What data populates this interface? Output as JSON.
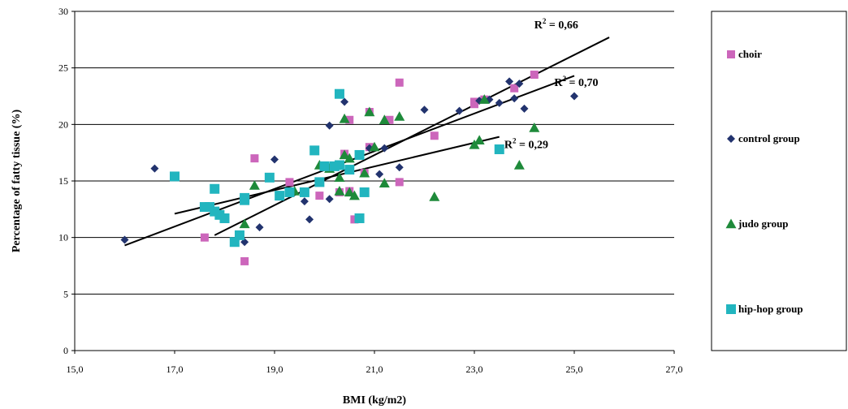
{
  "chart_data": {
    "type": "scatter",
    "xlabel": "BMI (kg/m2)",
    "ylabel": "Percentage of fatty tissue  (%)",
    "xlim": [
      15,
      27
    ],
    "ylim": [
      0,
      30
    ],
    "x_ticks": [
      "15,0",
      "17,0",
      "19,0",
      "21,0",
      "23,0",
      "25,0",
      "27,0"
    ],
    "x_tick_values": [
      15,
      17,
      19,
      21,
      23,
      25,
      27
    ],
    "y_ticks": [
      "0",
      "5",
      "10",
      "15",
      "20",
      "25",
      "30"
    ],
    "y_tick_values": [
      0,
      5,
      10,
      15,
      20,
      25,
      30
    ],
    "grid": "horizontal",
    "legend_position": "right",
    "series": [
      {
        "name": "choir",
        "marker": "square",
        "color": "#cc66bb",
        "points": [
          [
            17.6,
            10.0
          ],
          [
            18.4,
            7.9
          ],
          [
            18.6,
            17.0
          ],
          [
            19.3,
            14.9
          ],
          [
            19.9,
            13.7
          ],
          [
            20.3,
            14.0
          ],
          [
            20.4,
            17.4
          ],
          [
            20.5,
            20.4
          ],
          [
            20.5,
            14.1
          ],
          [
            20.6,
            11.6
          ],
          [
            20.8,
            15.7
          ],
          [
            20.9,
            18.0
          ],
          [
            20.9,
            21.1
          ],
          [
            21.3,
            20.4
          ],
          [
            21.5,
            14.9
          ],
          [
            21.5,
            23.7
          ],
          [
            22.2,
            19.0
          ],
          [
            23.0,
            21.8
          ],
          [
            23.0,
            22.0
          ],
          [
            23.2,
            22.2
          ],
          [
            23.8,
            23.2
          ],
          [
            24.2,
            24.4
          ]
        ]
      },
      {
        "name": "control group",
        "marker": "diamond",
        "color": "#22336e",
        "points": [
          [
            16.0,
            9.8
          ],
          [
            16.6,
            16.1
          ],
          [
            18.2,
            9.7
          ],
          [
            18.4,
            9.6
          ],
          [
            18.7,
            10.9
          ],
          [
            19.0,
            16.9
          ],
          [
            19.6,
            13.2
          ],
          [
            19.7,
            11.6
          ],
          [
            20.1,
            13.4
          ],
          [
            20.1,
            19.9
          ],
          [
            20.4,
            22.0
          ],
          [
            20.9,
            17.9
          ],
          [
            21.1,
            15.6
          ],
          [
            21.2,
            17.9
          ],
          [
            21.5,
            16.2
          ],
          [
            22.0,
            21.3
          ],
          [
            22.7,
            21.2
          ],
          [
            23.1,
            22.1
          ],
          [
            23.3,
            22.2
          ],
          [
            23.5,
            21.9
          ],
          [
            23.7,
            23.8
          ],
          [
            23.8,
            22.3
          ],
          [
            23.9,
            23.6
          ],
          [
            24.0,
            21.4
          ],
          [
            25.0,
            22.5
          ]
        ]
      },
      {
        "name": "judo group",
        "marker": "triangle",
        "color": "#1e8a3a",
        "points": [
          [
            18.4,
            11.2
          ],
          [
            18.6,
            14.6
          ],
          [
            19.4,
            14.1
          ],
          [
            19.9,
            16.4
          ],
          [
            20.1,
            16.1
          ],
          [
            20.3,
            15.3
          ],
          [
            20.3,
            14.1
          ],
          [
            20.4,
            17.3
          ],
          [
            20.4,
            20.5
          ],
          [
            20.5,
            17.0
          ],
          [
            20.5,
            14.0
          ],
          [
            20.6,
            13.7
          ],
          [
            20.8,
            15.7
          ],
          [
            20.9,
            21.1
          ],
          [
            21.0,
            18.0
          ],
          [
            21.2,
            14.8
          ],
          [
            21.2,
            20.4
          ],
          [
            21.5,
            20.7
          ],
          [
            22.2,
            13.6
          ],
          [
            23.0,
            18.2
          ],
          [
            23.1,
            18.6
          ],
          [
            23.2,
            22.2
          ],
          [
            23.9,
            16.4
          ],
          [
            24.2,
            19.7
          ]
        ]
      },
      {
        "name": "hip-hop group",
        "marker": "square",
        "color": "#22b5bf",
        "points": [
          [
            17.0,
            15.4
          ],
          [
            17.6,
            12.7
          ],
          [
            17.7,
            12.7
          ],
          [
            17.8,
            14.3
          ],
          [
            17.8,
            12.3
          ],
          [
            17.9,
            12.0
          ],
          [
            18.0,
            11.7
          ],
          [
            18.2,
            9.6
          ],
          [
            18.3,
            10.2
          ],
          [
            18.4,
            13.5
          ],
          [
            18.4,
            13.3
          ],
          [
            18.9,
            15.3
          ],
          [
            19.1,
            13.7
          ],
          [
            19.3,
            14.0
          ],
          [
            19.6,
            14.0
          ],
          [
            19.8,
            17.7
          ],
          [
            19.9,
            14.9
          ],
          [
            20.0,
            16.3
          ],
          [
            20.2,
            16.3
          ],
          [
            20.3,
            22.7
          ],
          [
            20.3,
            16.4
          ],
          [
            20.5,
            16.0
          ],
          [
            20.7,
            11.7
          ],
          [
            20.7,
            17.3
          ],
          [
            20.8,
            14.0
          ],
          [
            23.5,
            17.8
          ]
        ]
      }
    ],
    "trendlines": [
      {
        "from": [
          17.8,
          10.2
        ],
        "to": [
          25.7,
          27.7
        ],
        "label": "= 0,66",
        "label_x": 24.2,
        "label_y": 28.5
      },
      {
        "from": [
          16.0,
          9.3
        ],
        "to": [
          25.0,
          24.3
        ],
        "label": "= 0,70",
        "label_x": 24.6,
        "label_y": 23.4
      },
      {
        "from": [
          17.0,
          12.1
        ],
        "to": [
          23.5,
          18.9
        ],
        "label": "= 0,29",
        "label_x": 23.6,
        "label_y": 17.9
      }
    ],
    "r2_prefix": "R",
    "r2_exponent": "2"
  }
}
